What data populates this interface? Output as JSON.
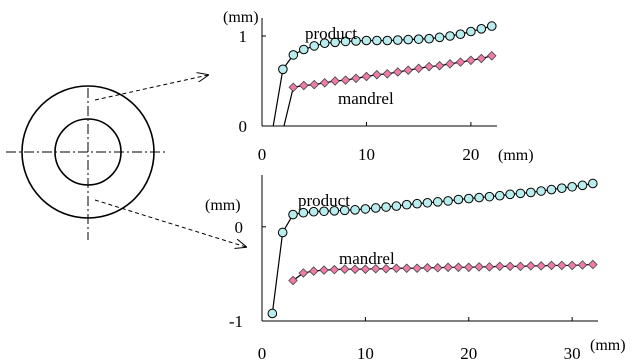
{
  "chart_data": [
    {
      "type": "line",
      "xlabel": "(mm)",
      "ylabel": "(mm)",
      "xlim": [
        0,
        22.5
      ],
      "ylim": [
        0,
        1.2
      ],
      "xticks": [
        "0",
        "10",
        "20"
      ],
      "yticks": [
        "0",
        "1"
      ],
      "grid": false,
      "series": [
        {
          "name": "product",
          "marker": "circle",
          "color": "#b9ecec",
          "x": [
            1,
            2,
            3,
            4,
            5,
            6,
            7,
            8,
            9,
            10,
            11,
            12,
            13,
            14,
            15,
            16,
            17,
            18,
            19,
            20,
            21,
            22
          ],
          "y": [
            -0.05,
            0.63,
            0.79,
            0.85,
            0.89,
            0.92,
            0.93,
            0.94,
            0.945,
            0.95,
            0.95,
            0.95,
            0.955,
            0.96,
            0.965,
            0.97,
            0.985,
            1.0,
            1.02,
            1.05,
            1.08,
            1.11
          ]
        },
        {
          "name": "mandrel",
          "marker": "diamond",
          "color": "#f07aa8",
          "x": [
            2,
            3,
            4,
            5,
            6,
            7,
            8,
            9,
            10,
            11,
            12,
            13,
            14,
            15,
            16,
            17,
            18,
            19,
            20,
            21,
            22
          ],
          "y": [
            -0.05,
            0.43,
            0.45,
            0.46,
            0.48,
            0.5,
            0.51,
            0.53,
            0.55,
            0.57,
            0.58,
            0.6,
            0.62,
            0.64,
            0.66,
            0.67,
            0.69,
            0.71,
            0.73,
            0.75,
            0.78
          ]
        }
      ]
    },
    {
      "type": "line",
      "xlabel": "(mm)",
      "ylabel": "(mm)",
      "xlim": [
        0,
        32.5
      ],
      "ylim": [
        -1,
        0.55
      ],
      "xticks": [
        "0",
        "10",
        "20",
        "30"
      ],
      "yticks": [
        "0",
        "-1"
      ],
      "grid": false,
      "series": [
        {
          "name": "product",
          "marker": "circle",
          "color": "#b9ecec",
          "x": [
            1,
            2,
            3,
            4,
            5,
            6,
            7,
            8,
            9,
            10,
            11,
            12,
            13,
            14,
            15,
            16,
            17,
            18,
            19,
            20,
            21,
            22,
            23,
            24,
            25,
            26,
            27,
            28,
            29,
            30,
            31,
            32
          ],
          "y": [
            -0.92,
            -0.06,
            0.13,
            0.15,
            0.16,
            0.165,
            0.17,
            0.175,
            0.18,
            0.19,
            0.2,
            0.21,
            0.22,
            0.235,
            0.245,
            0.255,
            0.265,
            0.275,
            0.29,
            0.3,
            0.31,
            0.32,
            0.33,
            0.345,
            0.355,
            0.365,
            0.38,
            0.395,
            0.41,
            0.425,
            0.44,
            0.46
          ]
        },
        {
          "name": "mandrel",
          "marker": "diamond",
          "color": "#f07aa8",
          "x": [
            3,
            4,
            5,
            6,
            7,
            8,
            9,
            10,
            11,
            12,
            13,
            14,
            15,
            16,
            17,
            18,
            19,
            20,
            21,
            22,
            23,
            24,
            25,
            26,
            27,
            28,
            29,
            30,
            31,
            32
          ],
          "y": [
            -0.57,
            -0.49,
            -0.47,
            -0.46,
            -0.455,
            -0.45,
            -0.45,
            -0.45,
            -0.445,
            -0.445,
            -0.44,
            -0.44,
            -0.44,
            -0.435,
            -0.435,
            -0.43,
            -0.43,
            -0.43,
            -0.425,
            -0.425,
            -0.42,
            -0.42,
            -0.42,
            -0.415,
            -0.415,
            -0.41,
            -0.41,
            -0.41,
            -0.405,
            -0.4
          ]
        }
      ]
    }
  ]
}
